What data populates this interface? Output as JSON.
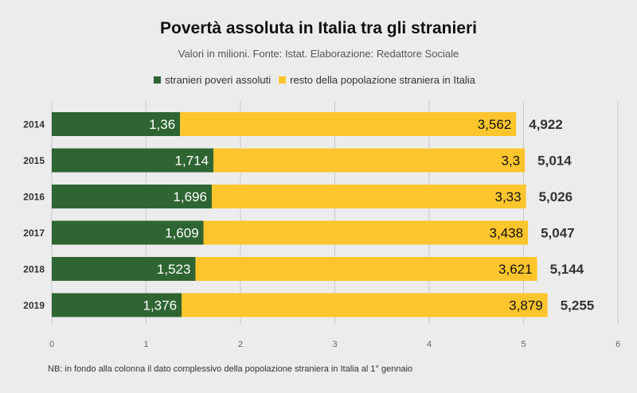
{
  "colors": {
    "poor": "#2e6532",
    "rest": "#fec52d",
    "grid": "#c8c8c8",
    "axis_text": "#666666",
    "total_text": "#333333"
  },
  "chart_data": {
    "type": "bar",
    "orientation": "horizontal",
    "stacked": true,
    "title": "Povertà assoluta in Italia tra gli stranieri",
    "subtitle": "Valori in milioni. Fonte: Istat. Elaborazione: Redattore Sociale",
    "categories": [
      "2014",
      "2015",
      "2016",
      "2017",
      "2018",
      "2019"
    ],
    "series": [
      {
        "name": "stranieri poveri assoluti",
        "values": [
          1.36,
          1.714,
          1.696,
          1.609,
          1.523,
          1.376
        ],
        "labels": [
          "1,36",
          "1,714",
          "1,696",
          "1,609",
          "1,523",
          "1,376"
        ]
      },
      {
        "name": "resto della popolazione straniera in Italia",
        "values": [
          3.562,
          3.3,
          3.33,
          3.438,
          3.621,
          3.879
        ],
        "labels": [
          "3,562",
          "3,3",
          "3,33",
          "3,438",
          "3,621",
          "3,879"
        ]
      }
    ],
    "totals": {
      "values": [
        4.922,
        5.014,
        5.026,
        5.047,
        5.144,
        5.255
      ],
      "labels": [
        "4,922",
        "5,014",
        "5,026",
        "5,047",
        "5,144",
        "5,255"
      ]
    },
    "xlim": [
      0,
      6
    ],
    "xticks": [
      "0",
      "1",
      "2",
      "3",
      "4",
      "5",
      "6"
    ],
    "grid": true,
    "legend_position": "top-center",
    "note": "NB: in fondo alla colonna il dato complessivo della popolazione straniera in Italia al 1° gennaio"
  }
}
